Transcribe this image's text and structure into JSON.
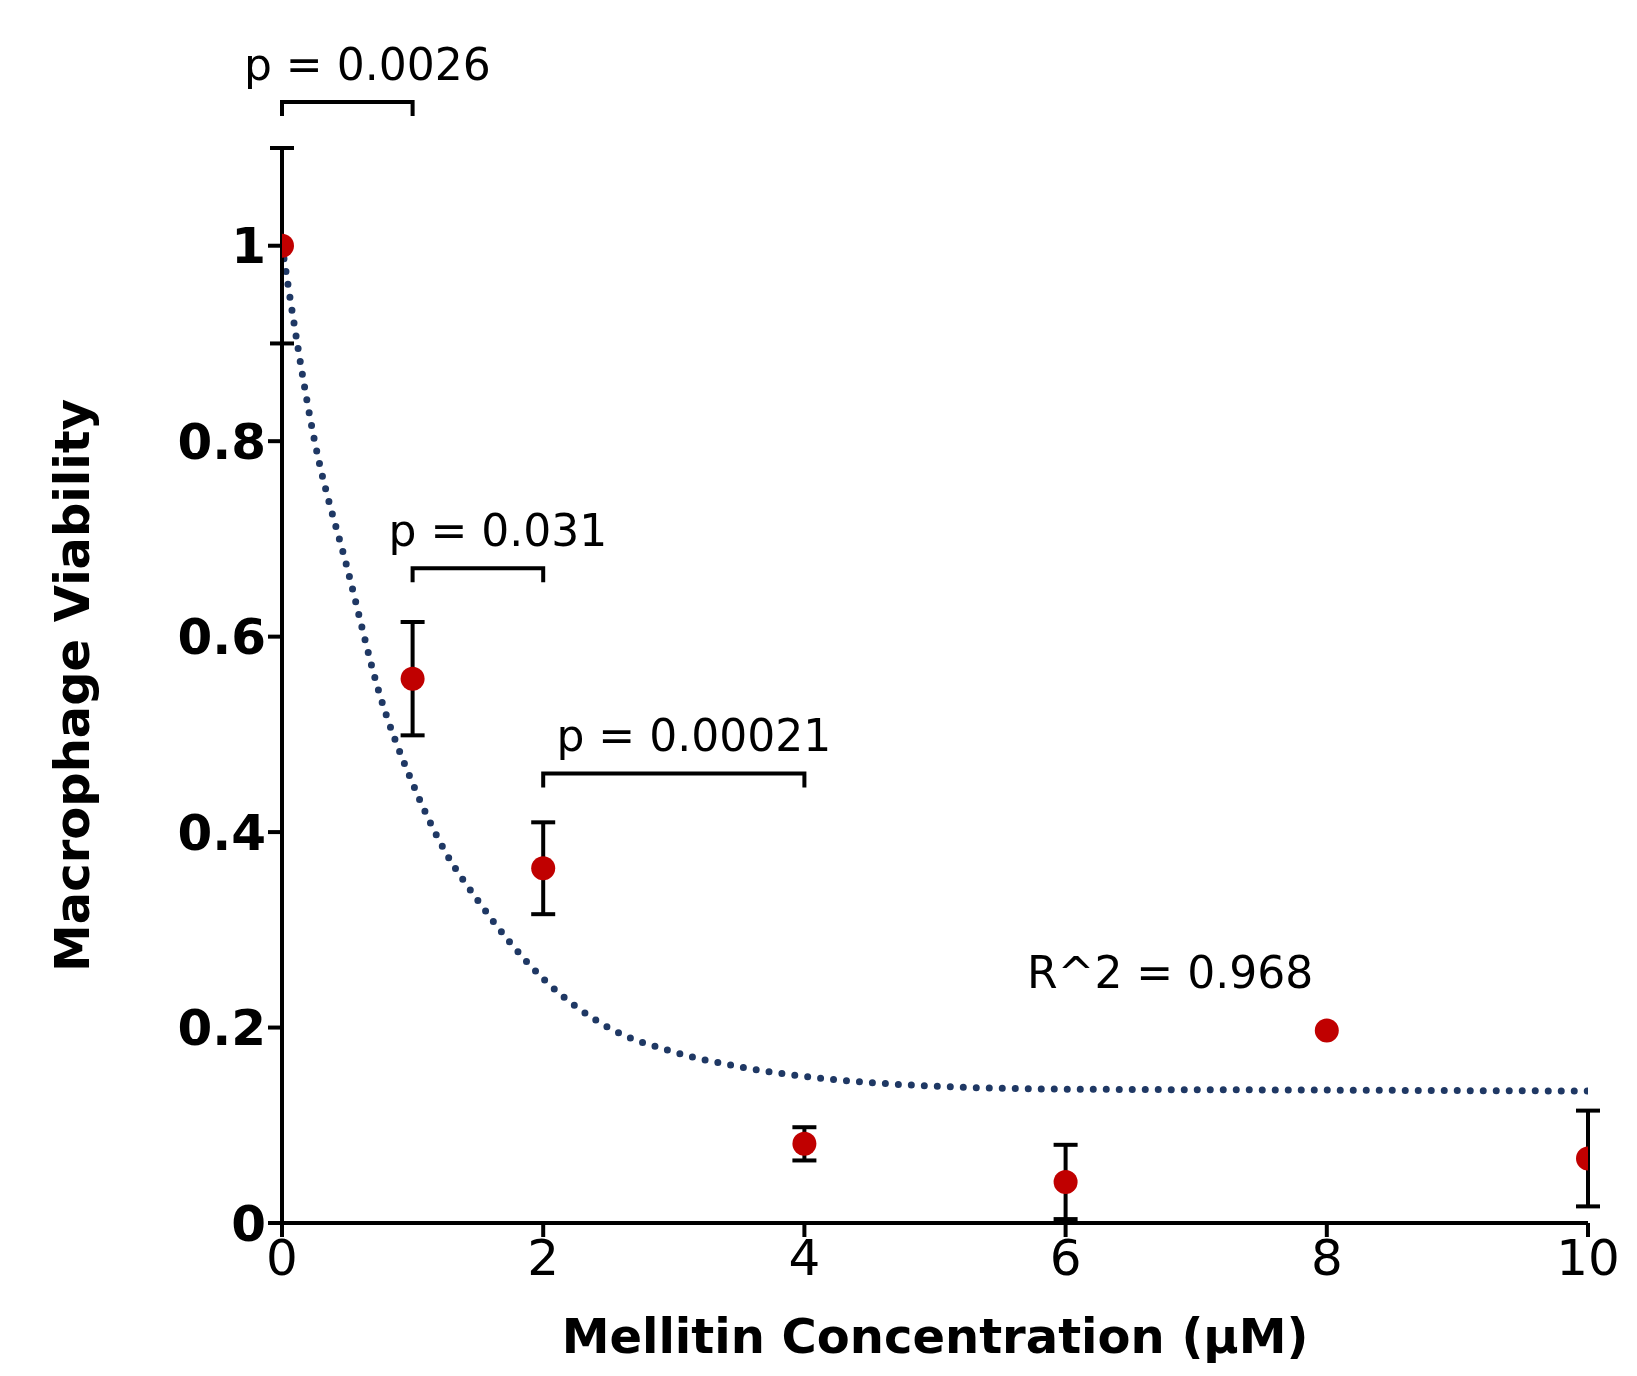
{
  "chart_data": {
    "type": "scatter",
    "xlabel": "Mellitin Concentration (µM)",
    "ylabel": "Macrophage Viability",
    "xlim": [
      0,
      10
    ],
    "xticks": [
      0,
      2,
      4,
      6,
      8,
      10
    ],
    "ylim": [
      0,
      1.1
    ],
    "yticks": [
      0,
      0.2,
      0.4,
      0.6,
      0.8,
      1
    ],
    "grid": false,
    "legend": false,
    "series": [
      {
        "type": "scatter",
        "color": "#c00000",
        "marker": "circle",
        "x": [
          0,
          1,
          2,
          4,
          6,
          8,
          10
        ],
        "values": [
          1.0,
          0.557,
          0.363,
          0.081,
          0.042,
          0.197,
          0.066
        ],
        "errors": [
          0.1,
          0.058,
          0.047,
          0.017,
          0.038,
          null,
          0.049
        ]
      },
      {
        "type": "line",
        "color": "#1f3864",
        "marker": "none",
        "line_style": "dotted",
        "x": [
          0,
          0.25,
          0.5,
          0.75,
          1,
          1.25,
          1.5,
          2,
          2.5,
          3,
          3.5,
          4,
          5,
          6,
          8,
          10
        ],
        "values": [
          1.0,
          0.8,
          0.67,
          0.54,
          0.45,
          0.38,
          0.33,
          0.25,
          0.2,
          0.175,
          0.16,
          0.15,
          0.14,
          0.137,
          0.136,
          0.135
        ]
      }
    ],
    "annotations": [
      "p = 0.0026",
      "p = 0.031",
      "p = 0.00021",
      "R^2 = 0.968"
    ]
  }
}
